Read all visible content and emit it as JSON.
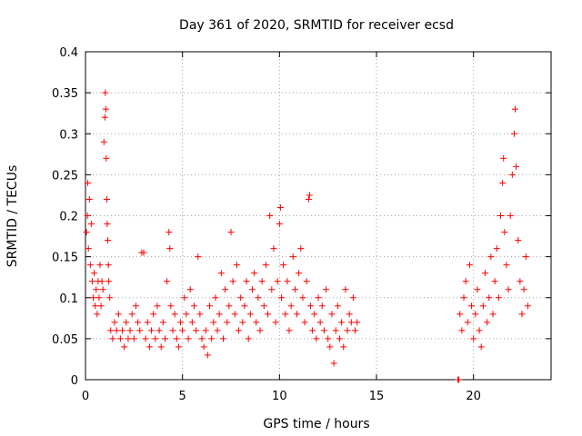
{
  "chart_data": {
    "type": "scatter",
    "title": "Day 361 of 2020, SRMTID for receiver ecsd",
    "xlabel": "GPS time / hours",
    "ylabel": "SRMTID / TECUs",
    "xlim": [
      0,
      24
    ],
    "ylim": [
      0,
      0.4
    ],
    "xticks": [
      0,
      5,
      10,
      15,
      20
    ],
    "yticks": [
      0,
      0.05,
      0.1,
      0.15,
      0.2,
      0.25,
      0.3,
      0.35,
      0.4
    ],
    "xtick_labels": [
      "0",
      "5",
      "10",
      "15",
      "20"
    ],
    "ytick_labels": [
      "0",
      "0.05",
      "0.1",
      "0.15",
      "0.2",
      "0.25",
      "0.3",
      "0.35",
      "0.4"
    ],
    "grid": true,
    "marker": "+",
    "color": "#ff0000",
    "point_count_note": "dense; representative sample",
    "series": [
      {
        "name": "SRMTID",
        "points": [
          [
            0.05,
            0.18
          ],
          [
            0.1,
            0.2
          ],
          [
            0.12,
            0.24
          ],
          [
            0.15,
            0.16
          ],
          [
            0.2,
            0.22
          ],
          [
            0.25,
            0.14
          ],
          [
            0.3,
            0.19
          ],
          [
            0.35,
            0.12
          ],
          [
            0.4,
            0.1
          ],
          [
            0.45,
            0.13
          ],
          [
            0.5,
            0.09
          ],
          [
            0.55,
            0.11
          ],
          [
            0.6,
            0.08
          ],
          [
            0.65,
            0.12
          ],
          [
            0.7,
            0.1
          ],
          [
            0.75,
            0.14
          ],
          [
            0.8,
            0.09
          ],
          [
            0.85,
            0.12
          ],
          [
            0.9,
            0.11
          ],
          [
            0.95,
            0.29
          ],
          [
            1.0,
            0.32
          ],
          [
            1.02,
            0.35
          ],
          [
            1.05,
            0.33
          ],
          [
            1.07,
            0.27
          ],
          [
            1.1,
            0.22
          ],
          [
            1.12,
            0.19
          ],
          [
            1.15,
            0.17
          ],
          [
            1.18,
            0.14
          ],
          [
            1.2,
            0.12
          ],
          [
            1.25,
            0.1
          ],
          [
            1.3,
            0.06
          ],
          [
            1.4,
            0.05
          ],
          [
            1.5,
            0.07
          ],
          [
            1.6,
            0.06
          ],
          [
            1.7,
            0.08
          ],
          [
            1.8,
            0.05
          ],
          [
            1.9,
            0.06
          ],
          [
            2.0,
            0.04
          ],
          [
            2.1,
            0.07
          ],
          [
            2.2,
            0.05
          ],
          [
            2.3,
            0.06
          ],
          [
            2.4,
            0.08
          ],
          [
            2.5,
            0.05
          ],
          [
            2.6,
            0.09
          ],
          [
            2.7,
            0.07
          ],
          [
            2.8,
            0.06
          ],
          [
            2.9,
            0.155
          ],
          [
            3.0,
            0.155
          ],
          [
            3.1,
            0.05
          ],
          [
            3.2,
            0.07
          ],
          [
            3.3,
            0.04
          ],
          [
            3.4,
            0.06
          ],
          [
            3.5,
            0.08
          ],
          [
            3.6,
            0.05
          ],
          [
            3.7,
            0.09
          ],
          [
            3.8,
            0.06
          ],
          [
            3.9,
            0.04
          ],
          [
            4.0,
            0.07
          ],
          [
            4.1,
            0.05
          ],
          [
            4.2,
            0.12
          ],
          [
            4.3,
            0.18
          ],
          [
            4.35,
            0.16
          ],
          [
            4.4,
            0.09
          ],
          [
            4.5,
            0.06
          ],
          [
            4.6,
            0.08
          ],
          [
            4.7,
            0.05
          ],
          [
            4.8,
            0.04
          ],
          [
            4.9,
            0.07
          ],
          [
            5.0,
            0.06
          ],
          [
            5.1,
            0.1
          ],
          [
            5.2,
            0.08
          ],
          [
            5.3,
            0.05
          ],
          [
            5.4,
            0.11
          ],
          [
            5.5,
            0.07
          ],
          [
            5.6,
            0.09
          ],
          [
            5.7,
            0.06
          ],
          [
            5.8,
            0.15
          ],
          [
            5.9,
            0.08
          ],
          [
            6.0,
            0.05
          ],
          [
            6.1,
            0.04
          ],
          [
            6.2,
            0.06
          ],
          [
            6.3,
            0.03
          ],
          [
            6.4,
            0.09
          ],
          [
            6.5,
            0.05
          ],
          [
            6.6,
            0.07
          ],
          [
            6.7,
            0.1
          ],
          [
            6.8,
            0.06
          ],
          [
            6.9,
            0.08
          ],
          [
            7.0,
            0.13
          ],
          [
            7.1,
            0.05
          ],
          [
            7.2,
            0.11
          ],
          [
            7.3,
            0.07
          ],
          [
            7.4,
            0.09
          ],
          [
            7.5,
            0.18
          ],
          [
            7.6,
            0.12
          ],
          [
            7.7,
            0.08
          ],
          [
            7.8,
            0.14
          ],
          [
            7.9,
            0.06
          ],
          [
            8.0,
            0.1
          ],
          [
            8.1,
            0.07
          ],
          [
            8.2,
            0.09
          ],
          [
            8.3,
            0.12
          ],
          [
            8.4,
            0.05
          ],
          [
            8.5,
            0.08
          ],
          [
            8.6,
            0.11
          ],
          [
            8.7,
            0.13
          ],
          [
            8.8,
            0.07
          ],
          [
            8.9,
            0.1
          ],
          [
            9.0,
            0.06
          ],
          [
            9.1,
            0.12
          ],
          [
            9.2,
            0.09
          ],
          [
            9.3,
            0.14
          ],
          [
            9.4,
            0.08
          ],
          [
            9.5,
            0.2
          ],
          [
            9.6,
            0.11
          ],
          [
            9.7,
            0.16
          ],
          [
            9.8,
            0.07
          ],
          [
            9.9,
            0.12
          ],
          [
            10.0,
            0.19
          ],
          [
            10.05,
            0.21
          ],
          [
            10.1,
            0.1
          ],
          [
            10.2,
            0.14
          ],
          [
            10.3,
            0.08
          ],
          [
            10.4,
            0.12
          ],
          [
            10.5,
            0.06
          ],
          [
            10.6,
            0.09
          ],
          [
            10.7,
            0.15
          ],
          [
            10.8,
            0.11
          ],
          [
            10.9,
            0.08
          ],
          [
            11.0,
            0.13
          ],
          [
            11.1,
            0.16
          ],
          [
            11.2,
            0.1
          ],
          [
            11.3,
            0.07
          ],
          [
            11.4,
            0.12
          ],
          [
            11.5,
            0.22
          ],
          [
            11.55,
            0.225
          ],
          [
            11.6,
            0.09
          ],
          [
            11.7,
            0.06
          ],
          [
            11.8,
            0.08
          ],
          [
            11.9,
            0.05
          ],
          [
            12.0,
            0.1
          ],
          [
            12.1,
            0.07
          ],
          [
            12.2,
            0.09
          ],
          [
            12.3,
            0.06
          ],
          [
            12.4,
            0.11
          ],
          [
            12.5,
            0.05
          ],
          [
            12.6,
            0.04
          ],
          [
            12.7,
            0.08
          ],
          [
            12.8,
            0.02
          ],
          [
            12.9,
            0.06
          ],
          [
            13.0,
            0.09
          ],
          [
            13.1,
            0.05
          ],
          [
            13.2,
            0.07
          ],
          [
            13.3,
            0.04
          ],
          [
            13.4,
            0.11
          ],
          [
            13.5,
            0.06
          ],
          [
            13.6,
            0.08
          ],
          [
            13.7,
            0.07
          ],
          [
            13.8,
            0.1
          ],
          [
            13.9,
            0.06
          ],
          [
            14.0,
            0.07
          ],
          [
            19.2,
            0.0
          ],
          [
            19.25,
            0.0
          ],
          [
            19.3,
            0.08
          ],
          [
            19.4,
            0.06
          ],
          [
            19.5,
            0.1
          ],
          [
            19.6,
            0.12
          ],
          [
            19.7,
            0.07
          ],
          [
            19.8,
            0.14
          ],
          [
            19.9,
            0.09
          ],
          [
            20.0,
            0.05
          ],
          [
            20.1,
            0.08
          ],
          [
            20.2,
            0.11
          ],
          [
            20.3,
            0.06
          ],
          [
            20.4,
            0.04
          ],
          [
            20.5,
            0.09
          ],
          [
            20.6,
            0.13
          ],
          [
            20.7,
            0.07
          ],
          [
            20.8,
            0.1
          ],
          [
            20.9,
            0.15
          ],
          [
            21.0,
            0.08
          ],
          [
            21.1,
            0.12
          ],
          [
            21.2,
            0.16
          ],
          [
            21.3,
            0.1
          ],
          [
            21.4,
            0.2
          ],
          [
            21.5,
            0.24
          ],
          [
            21.55,
            0.27
          ],
          [
            21.6,
            0.18
          ],
          [
            21.7,
            0.14
          ],
          [
            21.8,
            0.11
          ],
          [
            21.9,
            0.2
          ],
          [
            22.0,
            0.25
          ],
          [
            22.1,
            0.3
          ],
          [
            22.15,
            0.33
          ],
          [
            22.2,
            0.26
          ],
          [
            22.3,
            0.17
          ],
          [
            22.4,
            0.12
          ],
          [
            22.5,
            0.08
          ],
          [
            22.6,
            0.11
          ],
          [
            22.7,
            0.15
          ],
          [
            22.8,
            0.09
          ]
        ]
      }
    ]
  }
}
